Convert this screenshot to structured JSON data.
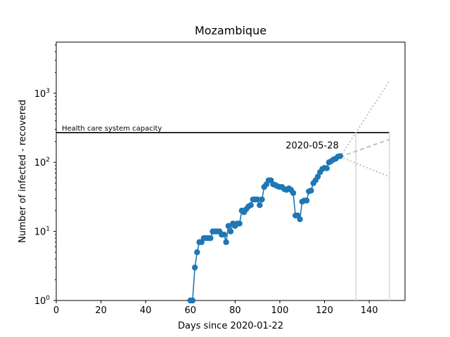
{
  "chart_data": {
    "type": "line",
    "title": "Mozambique",
    "xlabel": "Days since 2020-01-22",
    "ylabel": "Number of infected - recovered",
    "xlim": [
      0,
      156
    ],
    "ylim": [
      1,
      5500
    ],
    "yscale": "log",
    "grid": false,
    "x_ticks": [
      0,
      20,
      40,
      60,
      80,
      100,
      120,
      140
    ],
    "y_ticks": [
      {
        "value": 1,
        "base": "10",
        "exp": "0"
      },
      {
        "value": 10,
        "base": "10",
        "exp": "1"
      },
      {
        "value": 100,
        "base": "10",
        "exp": "2"
      },
      {
        "value": 1000,
        "base": "10",
        "exp": "3"
      }
    ],
    "capacity": {
      "label": "Health care system capacity",
      "value": 270,
      "x_end": 149
    },
    "annotation": {
      "text": "2020-05-28",
      "x": 127,
      "y": 120
    },
    "colors": {
      "series": "#1f77b4",
      "projection": "#bbbbbb",
      "limits": "#d8d8d8",
      "capacity": "#000000"
    },
    "series": [
      {
        "x": [
          60,
          61,
          62,
          63,
          64,
          65,
          66,
          67,
          68,
          69,
          70,
          71,
          72,
          73,
          74,
          75,
          76,
          77,
          78,
          79,
          80,
          81,
          82,
          83,
          84,
          85,
          86,
          87,
          88,
          89,
          90,
          91,
          92,
          93,
          94,
          95,
          96,
          97,
          98,
          99,
          100,
          101,
          102,
          103,
          104,
          105,
          106,
          107,
          108,
          109,
          110,
          111,
          112,
          113,
          114,
          115,
          116,
          117,
          118,
          119,
          120,
          121,
          122,
          123,
          124,
          125,
          126,
          127
        ],
        "y": [
          1,
          1,
          3,
          5,
          7,
          7,
          8,
          8,
          8,
          8,
          10,
          10,
          10,
          10,
          9,
          9,
          7,
          12,
          10,
          13,
          12,
          13,
          13,
          20,
          19,
          21,
          23,
          24,
          29,
          29,
          29,
          24,
          29,
          44,
          48,
          55,
          55,
          48,
          47,
          45,
          44,
          44,
          41,
          40,
          42,
          40,
          36,
          17,
          17,
          15,
          27,
          28,
          28,
          38,
          39,
          50,
          55,
          62,
          72,
          80,
          83,
          82,
          100,
          104,
          110,
          113,
          121,
          123
        ]
      }
    ],
    "projections": [
      {
        "style": "dashed",
        "x": [
          127,
          149
        ],
        "y": [
          120,
          215
        ]
      },
      {
        "style": "dotted",
        "x": [
          127,
          149
        ],
        "y": [
          120,
          1500
        ]
      },
      {
        "style": "dotted",
        "x": [
          127,
          149
        ],
        "y": [
          120,
          62
        ]
      }
    ],
    "vlines": [
      {
        "x": 134,
        "y_top": 270
      },
      {
        "x": 149,
        "y_top": 270
      }
    ]
  }
}
